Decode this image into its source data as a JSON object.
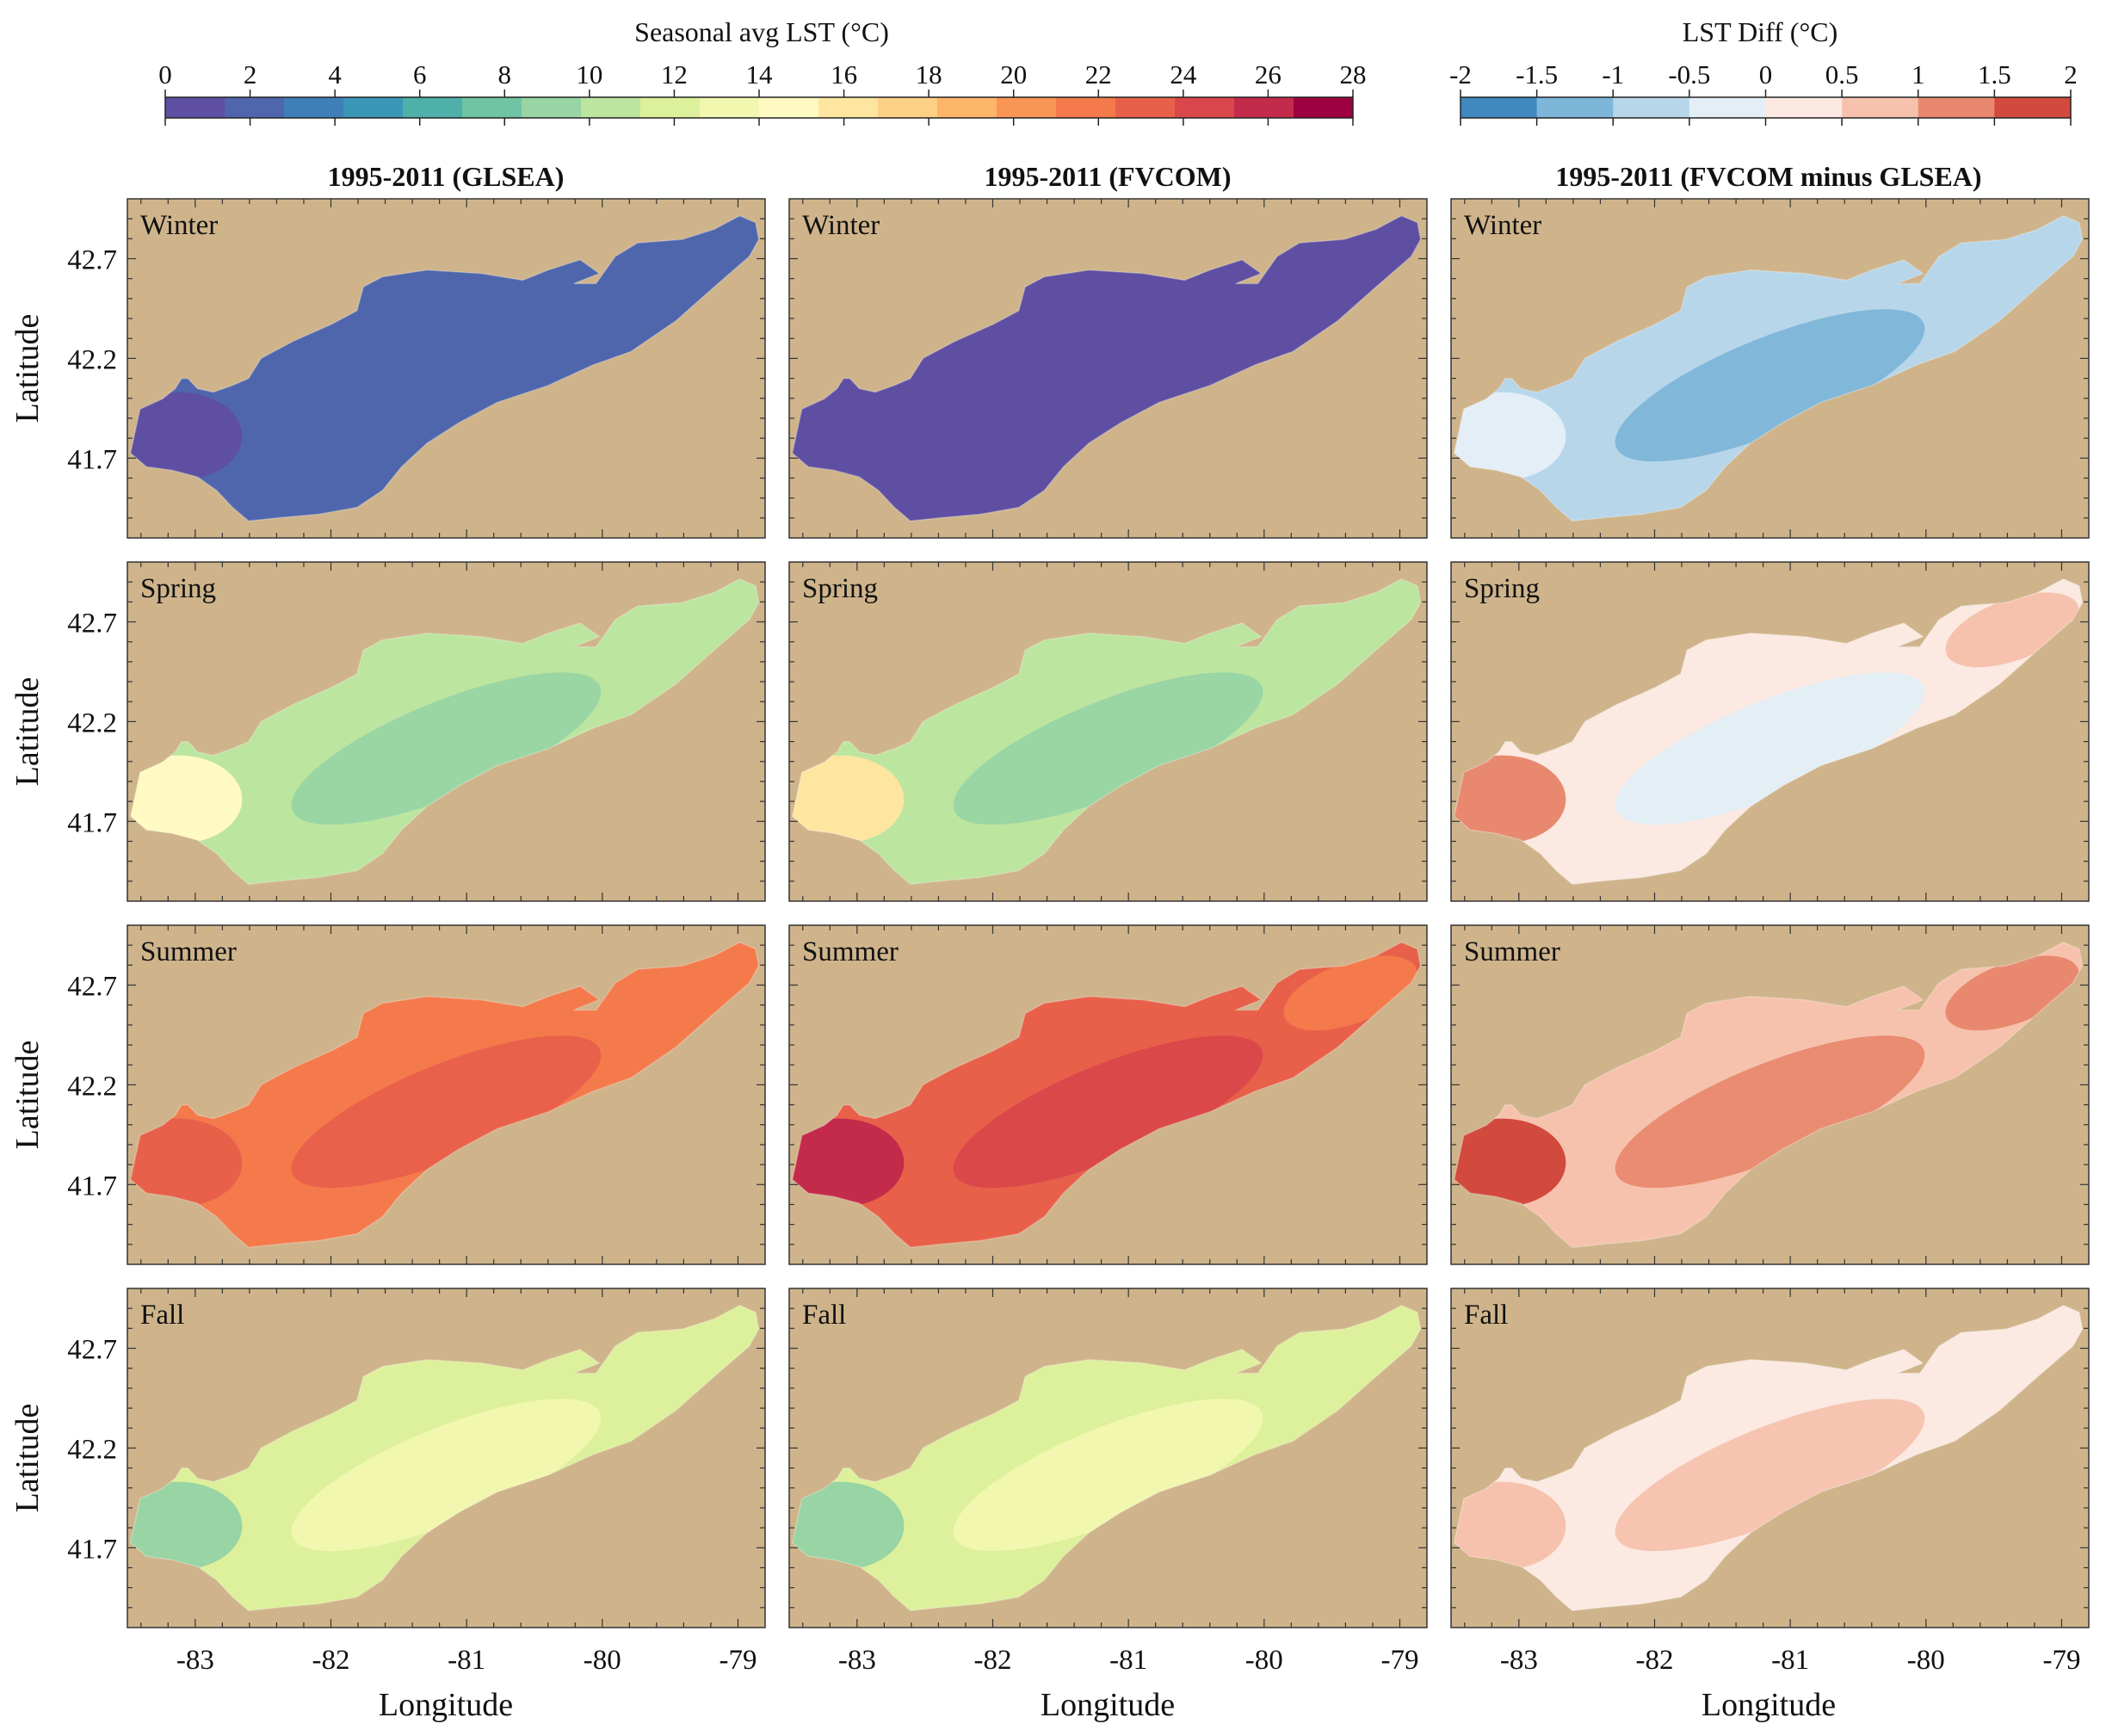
{
  "colorbars": [
    {
      "title": "Seasonal avg LST (°C)",
      "ticks": [
        "0",
        "2",
        "4",
        "6",
        "8",
        "10",
        "12",
        "14",
        "16",
        "18",
        "20",
        "22",
        "24",
        "26",
        "28"
      ],
      "range": [
        0,
        28
      ],
      "colors": [
        "#5e4fa2",
        "#4f66ad",
        "#3f7fb8",
        "#3a97b8",
        "#4eb0a9",
        "#70c4a4",
        "#98d4a4",
        "#bce5a0",
        "#ddf09b",
        "#f2f7b0",
        "#fff9c2",
        "#fee6a0",
        "#fdd185",
        "#fdb56a",
        "#f99656",
        "#f47a4c",
        "#e8604a",
        "#d9474a",
        "#c42b4b",
        "#9e0142"
      ]
    },
    {
      "title": "LST Diff (°C)",
      "ticks": [
        "-2",
        "-1.5",
        "-1",
        "-0.5",
        "0",
        "0.5",
        "1",
        "1.5",
        "2"
      ],
      "range": [
        -2,
        2
      ],
      "colors": [
        "#3f88c0",
        "#7db6d8",
        "#b7d6ea",
        "#e3eef6",
        "#fbe9e2",
        "#f6c2ad",
        "#e8896f",
        "#d24a3e"
      ]
    }
  ],
  "column_titles": [
    "1995-2011 (GLSEA)",
    "1995-2011 (FVCOM)",
    "1995-2011 (FVCOM minus GLSEA)"
  ],
  "row_labels": [
    "Winter",
    "Spring",
    "Summer",
    "Fall"
  ],
  "axes": {
    "xlabel": "Longitude",
    "ylabel": "Latitude",
    "xticks": [
      "-83",
      "-82",
      "-81",
      "-80",
      "-79"
    ],
    "yticks": [
      "42.7",
      "42.2",
      "41.7"
    ],
    "xlim": [
      -83.5,
      -78.8
    ],
    "ylim": [
      41.3,
      43.0
    ]
  },
  "colors": {
    "land": "#cfb48b",
    "frame": "#333333"
  },
  "chart_data": {
    "type": "heatmap",
    "description_units": "degC",
    "panels": [
      {
        "column": "1995-2011 (GLSEA)",
        "season": "Winter",
        "base_c": 1.5,
        "west_c": 0.6,
        "east_c": 1.5,
        "inner_c": 2.2
      },
      {
        "column": "1995-2011 (FVCOM)",
        "season": "Winter",
        "base_c": 0.5,
        "west_c": 0.5,
        "east_c": 0.5,
        "inner_c": 1.4
      },
      {
        "column": "1995-2011 (FVCOM minus GLSEA)",
        "season": "Winter",
        "base_c": -0.8,
        "west_c": -0.3,
        "east_c": -0.8,
        "inner_c": -1.2
      },
      {
        "column": "1995-2011 (GLSEA)",
        "season": "Spring",
        "base_c": 11.0,
        "west_c": 15.0,
        "east_c": 10.5,
        "inner_c": 9.5
      },
      {
        "column": "1995-2011 (FVCOM)",
        "season": "Spring",
        "base_c": 11.0,
        "west_c": 16.0,
        "east_c": 10.5,
        "inner_c": 9.5
      },
      {
        "column": "1995-2011 (FVCOM minus GLSEA)",
        "season": "Spring",
        "base_c": 0.2,
        "west_c": 1.2,
        "east_c": 0.8,
        "inner_c": -0.2
      },
      {
        "column": "1995-2011 (GLSEA)",
        "season": "Summer",
        "base_c": 21.5,
        "west_c": 23.5,
        "east_c": 21.0,
        "inner_c": 22.5
      },
      {
        "column": "1995-2011 (FVCOM)",
        "season": "Summer",
        "base_c": 23.0,
        "west_c": 26.5,
        "east_c": 22.0,
        "inner_c": 24.5
      },
      {
        "column": "1995-2011 (FVCOM minus GLSEA)",
        "season": "Summer",
        "base_c": 0.6,
        "west_c": 1.8,
        "east_c": 1.2,
        "inner_c": 1.2
      },
      {
        "column": "1995-2011 (GLSEA)",
        "season": "Fall",
        "base_c": 12.0,
        "west_c": 9.5,
        "east_c": 12.0,
        "inner_c": 12.8
      },
      {
        "column": "1995-2011 (FVCOM)",
        "season": "Fall",
        "base_c": 12.5,
        "west_c": 9.0,
        "east_c": 12.5,
        "inner_c": 13.3
      },
      {
        "column": "1995-2011 (FVCOM minus GLSEA)",
        "season": "Fall",
        "base_c": 0.2,
        "west_c": 0.6,
        "east_c": 0.2,
        "inner_c": 0.6
      }
    ]
  }
}
